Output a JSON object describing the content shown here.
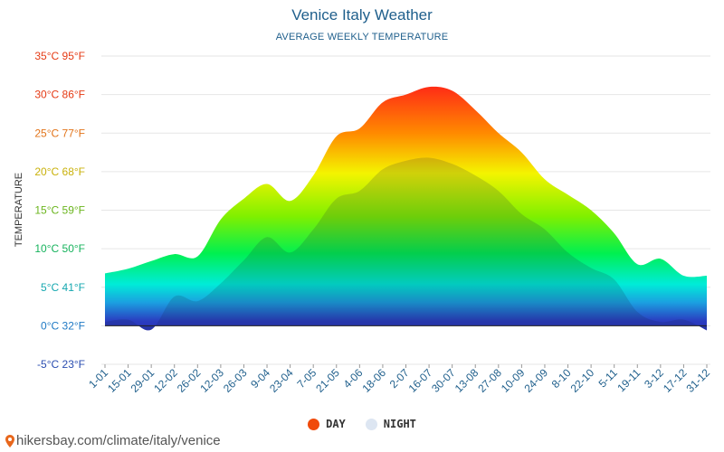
{
  "header": {
    "title": "Venice Italy Weather",
    "subtitle": "AVERAGE WEEKLY TEMPERATURE"
  },
  "legend": {
    "day_label": "DAY",
    "night_label": "NIGHT",
    "day_color": "#f04a0a",
    "night_color": "#dde6f2"
  },
  "footer": {
    "source_text": "hikersbay.com/climate/italy/venice",
    "pin_color": "#e8671c"
  },
  "chart_data": {
    "type": "area",
    "title": "Venice Italy Weather",
    "subtitle": "AVERAGE WEEKLY TEMPERATURE",
    "ylabel": "TEMPERATURE",
    "xlabel": "",
    "ylim": [
      -5,
      35
    ],
    "grid": true,
    "legend_position": "bottom",
    "y_ticks": [
      {
        "value": 35,
        "label": "35°C 95°F",
        "color": "#e53a14"
      },
      {
        "value": 30,
        "label": "30°C 86°F",
        "color": "#e53a14"
      },
      {
        "value": 25,
        "label": "25°C 77°F",
        "color": "#e2741a"
      },
      {
        "value": 20,
        "label": "20°C 68°F",
        "color": "#c9b10a"
      },
      {
        "value": 15,
        "label": "15°C 59°F",
        "color": "#6bb51e"
      },
      {
        "value": 10,
        "label": "10°C 50°F",
        "color": "#17b35d"
      },
      {
        "value": 5,
        "label": "5°C 41°F",
        "color": "#16a8b0"
      },
      {
        "value": 0,
        "label": "0°C 32°F",
        "color": "#1f79c4"
      },
      {
        "value": -5,
        "label": "-5°C 23°F",
        "color": "#2a4db0"
      }
    ],
    "categories": [
      "1-01",
      "15-01",
      "29-01",
      "12-02",
      "26-02",
      "12-03",
      "26-03",
      "9-04",
      "23-04",
      "7-05",
      "21-05",
      "4-06",
      "18-06",
      "2-07",
      "16-07",
      "30-07",
      "13-08",
      "27-08",
      "10-09",
      "24-09",
      "8-10",
      "22-10",
      "5-11",
      "19-11",
      "3-12",
      "17-12",
      "31-12"
    ],
    "series": [
      {
        "name": "DAY",
        "values": [
          6.8,
          7.4,
          8.4,
          9.3,
          9.0,
          13.8,
          16.5,
          18.4,
          16.2,
          19.5,
          24.6,
          25.6,
          29.0,
          30.0,
          31.0,
          30.5,
          28.0,
          25.0,
          22.5,
          19.0,
          17.0,
          15.0,
          12.0,
          8.0,
          8.7,
          6.5,
          6.5
        ]
      },
      {
        "name": "NIGHT",
        "values": [
          0.5,
          0.8,
          -0.5,
          3.8,
          3.2,
          5.5,
          8.5,
          11.5,
          9.5,
          12.5,
          16.5,
          17.5,
          20.3,
          21.4,
          21.8,
          21.0,
          19.5,
          17.5,
          14.5,
          12.5,
          9.5,
          7.5,
          6.0,
          1.8,
          0.5,
          0.8,
          -0.6
        ]
      }
    ]
  }
}
